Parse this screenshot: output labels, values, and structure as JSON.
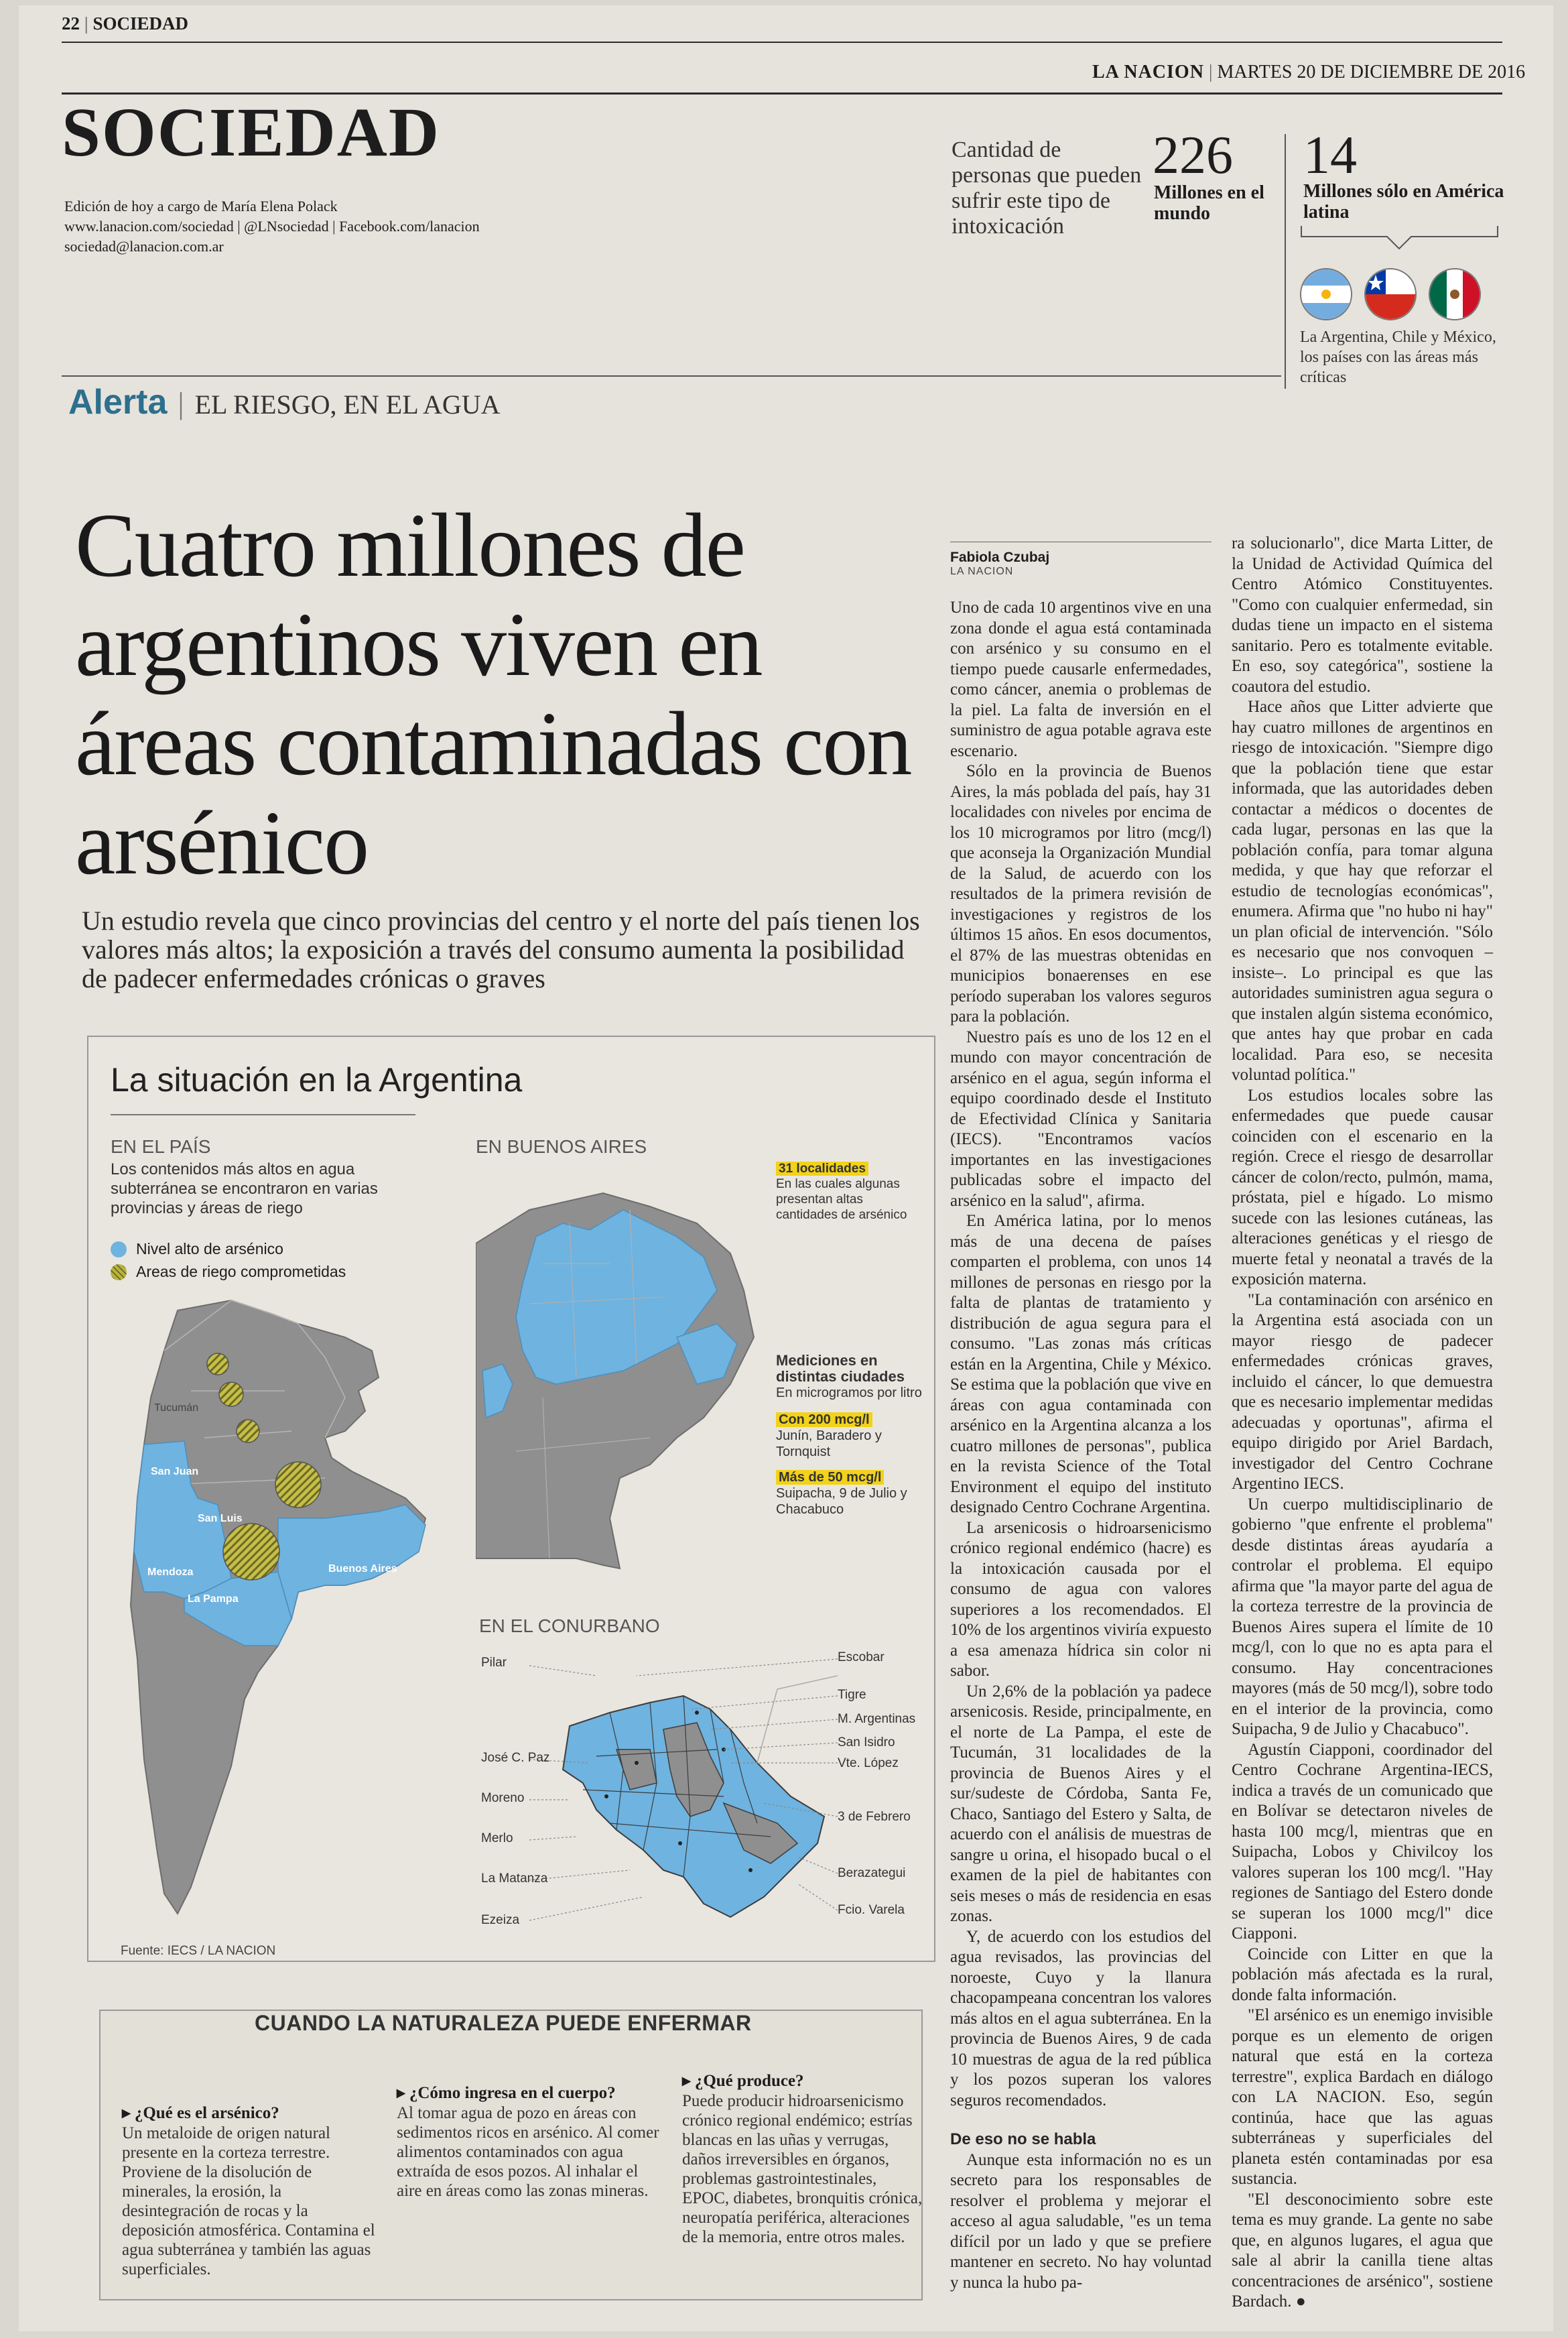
{
  "header": {
    "page_number": "22",
    "section_small": "SOCIEDAD",
    "newspaper": "LA NACION",
    "date": "MARTES 20 DE DICIEMBRE DE 2016",
    "section_big": "SOCIEDAD",
    "edition_line": "Edición de hoy a cargo de María Elena Polack",
    "links_line": "www.lanacion.com/sociedad | @LNsociedad | Facebook.com/lanacion",
    "email_line": "sociedad@lanacion.com.ar"
  },
  "stats": {
    "label": "Cantidad de personas que pueden sufrir este tipo de intoxicación",
    "world_number": "226",
    "world_label": "Millones en el mundo",
    "latam_number": "14",
    "latam_label": "Millones sólo en América latina",
    "flags_caption": "La Argentina, Chile y México, los países con las áreas más críticas",
    "flags": [
      "argentina-flag",
      "chile-flag",
      "mexico-flag"
    ]
  },
  "kicker": {
    "tag": "Alerta",
    "topic": "EL RIESGO, EN EL AGUA"
  },
  "headline": "Cuatro millones de argentinos viven en áreas contaminadas con arsénico",
  "subhead": "Un estudio revela que cinco provincias del centro y el norte del país tienen los valores más altos; la exposición a través del consumo aumenta la posibilidad de padecer enfermedades crónicas o graves",
  "byline": {
    "author": "Fabiola Czubaj",
    "outlet": "LA NACION"
  },
  "infographic": {
    "title": "La situación en la Argentina",
    "country": {
      "heading": "EN EL PAÍS",
      "text": "Los contenidos más altos en agua subterránea se encontraron en varias provincias y áreas de riego",
      "legend_high": "Nivel alto de arsénico",
      "legend_irrigation": "Areas de riego comprometidas",
      "map_labels": [
        "Tucumán",
        "San Juan",
        "San Luis",
        "Mendoza",
        "La Pampa",
        "Buenos Aires"
      ]
    },
    "buenos_aires": {
      "heading": "EN BUENOS AIRES",
      "localities_highlight": "31 localidades",
      "localities_text": "En las cuales algunas presentan altas cantidades de arsénico",
      "measurements_title": "Mediciones en distintas ciudades",
      "measurements_unit": "En microgramos por litro",
      "level1_label": "Con 200 mcg/l",
      "level1_cities": "Junín, Baradero y Tornquist",
      "level2_label": "Más de 50 mcg/l",
      "level2_cities": "Suipacha, 9 de Julio y Chacabuco"
    },
    "conurbano": {
      "heading": "EN EL CONURBANO",
      "left_labels": [
        "Pilar",
        "José C. Paz",
        "Moreno",
        "Merlo",
        "La Matanza",
        "Ezeiza"
      ],
      "right_labels": [
        "Escobar",
        "Tigre",
        "M. Argentinas",
        "San Isidro",
        "Vte. López",
        "3 de Febrero",
        "Berazategui",
        "Fcio. Varela"
      ]
    },
    "source": "Fuente: IECS / LA NACION",
    "colors": {
      "high": "#6fb3e0",
      "irrigation": "#b9b240",
      "land": "#8f8f8f"
    }
  },
  "factbox": {
    "title": "CUANDO LA NATURALEZA PUEDE ENFERMAR",
    "q1": "¿Qué es el arsénico?",
    "a1": "Un metaloide de origen natural presente en la corteza terrestre. Proviene de la disolución de minerales, la erosión, la desintegración de rocas y la deposición atmosférica. Contamina el agua subterránea y también las aguas superficiales.",
    "q2": "¿Cómo ingresa en el cuerpo?",
    "a2": "Al tomar agua de pozo en áreas con sedimentos ricos en arsénico. Al comer alimentos contaminados con agua extraída de esos pozos. Al inhalar el aire en áreas como las zonas mineras.",
    "q3": "¿Qué produce?",
    "a3": "Puede producir hidroarsenicismo crónico regional endémico; estrías blancas en las uñas y verrugas, daños irreversibles en órganos, problemas gastrointestinales, EPOC, diabetes, bronquitis crónica, neuropatía periférica, alteraciones de la memoria, entre otros males."
  },
  "body": {
    "col1": [
      "Uno de cada 10 argentinos vive en una zona donde el agua está contaminada con arsénico y su consumo en el tiempo puede causarle enfermedades, como cáncer, anemia o problemas de la piel. La falta de inversión en el suministro de agua potable agrava este escenario.",
      "Sólo en la provincia de Buenos Aires, la más poblada del país, hay 31 localidades con niveles por encima de los 10 microgramos por litro (mcg/l) que aconseja la Organización Mundial de la Salud, de acuerdo con los resultados de la primera revisión de investigaciones y registros de los últimos 15 años. En esos documentos, el 87% de las muestras obtenidas en municipios bonaerenses en ese período superaban los valores seguros para la población.",
      "Nuestro país es uno de los 12 en el mundo con mayor concentración de arsénico en el agua, según informa el equipo coordinado desde el Instituto de Efectividad Clínica y Sanitaria (IECS). \"Encontramos vacíos importantes en las investigaciones publicadas sobre el impacto del arsénico en la salud\", afirma.",
      "En América latina, por lo menos más de una decena de países comparten el problema, con unos 14 millones de personas en riesgo por la falta de plantas de tratamiento y distribución de agua segura para el consumo. \"Las zonas más críticas están en la Argentina, Chile y México. Se estima que la población que vive en áreas con agua contaminada con arsénico en la Argentina alcanza a los cuatro millones de personas\", publica en la revista Science of the Total Environment el equipo del instituto designado Centro Cochrane Argentina.",
      "La arsenicosis o hidroarsenicismo crónico regional endémico (hacre) es la intoxicación causada por el consumo de agua con valores superiores a los recomendados. El 10% de los argentinos viviría expuesto a esa amenaza hídrica sin color ni sabor.",
      "Un 2,6% de la población ya padece arsenicosis. Reside, principalmente, en el norte de La Pampa, el este de Tucumán, 31 localidades de la provincia de Buenos Aires y el sur/sudeste de Córdoba, Santa Fe, Chaco, Santiago del Estero y Salta, de acuerdo con el análisis de muestras de sangre u orina, el hisopado bucal o el examen de la piel de habitantes con seis meses o más de residencia en esas zonas.",
      "Y, de acuerdo con los estudios del agua revisados, las provincias del noroeste, Cuyo y la llanura chacopampeana concentran los valores más altos en el agua subterránea. En la provincia de Buenos Aires, 9 de cada 10 muestras de agua de la red pública y los pozos superan los valores seguros recomendados."
    ],
    "col1_subhead": "De eso no se habla",
    "col1_after": "Aunque esta información no es un secreto para los responsables de resolver el problema y mejorar el acceso al agua saludable, \"es un tema difícil por un lado y que se prefiere mantener en secreto. No hay voluntad y nunca la hubo pa-",
    "col2": [
      "ra solucionarlo\", dice Marta Litter, de la Unidad de Actividad Química del Centro Atómico Constituyentes. \"Como con cualquier enfermedad, sin dudas tiene un impacto en el sistema sanitario. Pero es totalmente evitable. En eso, soy categórica\", sostiene la coautora del estudio.",
      "Hace años que Litter advierte que hay cuatro millones de argentinos en riesgo de intoxicación. \"Siempre digo que la población tiene que estar informada, que las autoridades deben contactar a médicos o docentes de cada lugar, personas en las que la población confía, para tomar alguna medida, y que hay que reforzar el estudio de tecnologías económicas\", enumera. Afirma que \"no hubo ni hay\" un plan oficial de intervención. \"Sólo es necesario que nos convoquen –insiste–. Lo principal es que las autoridades suministren agua segura o que instalen algún sistema económico, que antes hay que probar en cada localidad. Para eso, se necesita voluntad política.\"",
      "Los estudios locales sobre las enfermedades que puede causar coinciden con el escenario en la región. Crece el riesgo de desarrollar cáncer de colon/recto, pulmón, mama, próstata, piel e hígado. Lo mismo sucede con las lesiones cutáneas, las alteraciones genéticas y el riesgo de muerte fetal y neonatal a través de la exposición materna.",
      "\"La contaminación con arsénico en la Argentina está asociada con un mayor riesgo de padecer enfermedades crónicas graves, incluido el cáncer, lo que demuestra que es necesario implementar medidas adecuadas y oportunas\", afirma el equipo dirigido por Ariel Bardach, investigador del Centro Cochrane Argentino IECS.",
      "Un cuerpo multidisciplinario de gobierno \"que enfrente el problema\" desde distintas áreas ayudaría a controlar el problema. El equipo afirma que \"la mayor parte del agua de la corteza terrestre de la provincia de Buenos Aires supera el límite de 10 mcg/l, con lo que no es apta para el consumo. Hay concentraciones mayores (más de 50 mcg/l), sobre todo en el interior de la provincia, como Suipacha, 9 de Julio y Chacabuco\".",
      "Agustín Ciapponi, coordinador del Centro Cochrane Argentina-IECS, indica a través de un comunicado que en Bolívar se detectaron niveles de hasta 100 mcg/l, mientras que en Suipacha, Lobos y Chivilcoy los valores superan los 100 mcg/l. \"Hay regiones de Santiago del Estero donde se superan los 1000 mcg/l\" dice Ciapponi.",
      "Coincide con Litter en que la población más afectada es la rural, donde falta información.",
      "\"El arsénico es un enemigo invisible porque es un elemento de origen natural que está en la corteza terrestre\", explica Bardach en diálogo con LA NACION. Eso, según continúa, hace que las aguas subterráneas y superficiales del planeta estén contaminadas por esa sustancia.",
      "\"El desconocimiento sobre este tema es muy grande. La gente no sabe que, en algunos lugares, el agua que sale al abrir la canilla tiene altas concentraciones de arsénico\", sostiene Bardach. ●"
    ]
  }
}
